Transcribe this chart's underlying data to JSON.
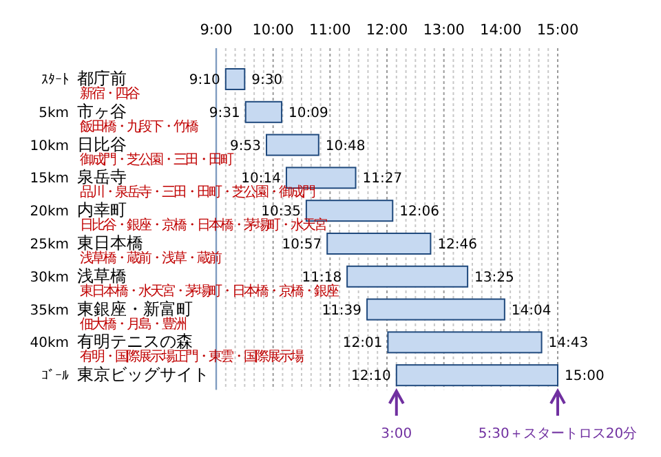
{
  "chart_data": {
    "type": "bar",
    "orientation": "horizontal",
    "color": "#c6d9f1",
    "grid": "x",
    "categories": [
      "都庁前",
      "市ヶ谷",
      "日比谷",
      "泉岳寺",
      "内幸町",
      "東日本橋",
      "浅草橋",
      "東銀座・新富町",
      "有明テニスの森",
      "東京ビッグサイト"
    ],
    "y2_categories": [
      "ｽﾀｰﾄ",
      "5km",
      "10km",
      "15km",
      "20km",
      "25km",
      "30km",
      "35km",
      "40km",
      "ｺﾞｰﾙ"
    ],
    "base": [
      9.1667,
      9.5167,
      9.8833,
      10.2333,
      10.5833,
      10.95,
      11.3,
      11.65,
      12.0167,
      12.1667
    ],
    "values": [
      0.3333,
      0.6333,
      0.9167,
      1.2167,
      1.5167,
      1.8167,
      2.1167,
      2.4167,
      2.7,
      2.8333
    ],
    "xlim": [
      9,
      15
    ],
    "xticks": [
      {
        "value": 9,
        "label": "9:00"
      },
      {
        "value": 9.1667,
        "label": null
      },
      {
        "value": 9.3333,
        "label": null
      },
      {
        "value": 9.5,
        "label": null
      },
      {
        "value": 9.6667,
        "label": null
      },
      {
        "value": 9.8333,
        "label": null
      },
      {
        "value": 10,
        "label": "10:00"
      },
      {
        "value": 10.1667,
        "label": null
      },
      {
        "value": 10.3333,
        "label": null
      },
      {
        "value": 10.5,
        "label": null
      },
      {
        "value": 10.6667,
        "label": null
      },
      {
        "value": 10.8333,
        "label": null
      },
      {
        "value": 11,
        "label": "11:00"
      },
      {
        "value": 11.1667,
        "label": null
      },
      {
        "value": 11.3333,
        "label": null
      },
      {
        "value": 11.5,
        "label": null
      },
      {
        "value": 11.6667,
        "label": null
      },
      {
        "value": 11.8333,
        "label": null
      },
      {
        "value": 12,
        "label": "12:00"
      },
      {
        "value": 12.1667,
        "label": null
      },
      {
        "value": 12.3333,
        "label": null
      },
      {
        "value": 12.5,
        "label": null
      },
      {
        "value": 12.6667,
        "label": null
      },
      {
        "value": 12.8333,
        "label": null
      },
      {
        "value": 13,
        "label": "13:00"
      },
      {
        "value": 13.1667,
        "label": null
      },
      {
        "value": 13.3333,
        "label": null
      },
      {
        "value": 13.5,
        "label": null
      },
      {
        "value": 13.6667,
        "label": null
      },
      {
        "value": 13.8333,
        "label": null
      },
      {
        "value": 14,
        "label": "14:00"
      },
      {
        "value": 14.1667,
        "label": null
      },
      {
        "value": 14.3333,
        "label": null
      },
      {
        "value": 14.5,
        "label": null
      },
      {
        "value": 14.6667,
        "label": null
      },
      {
        "value": 14.8333,
        "label": null
      },
      {
        "value": 15,
        "label": "15:00"
      }
    ],
    "annotations": [
      "新宿・四谷",
      "飯田橋・九段下・竹橋",
      "御成門・芝公園・三田・田町",
      "品川・泉岳寺・三田・田町・芝公園・御成門",
      "日比谷・銀座・京橋・日本橋・茅場町・水天宮",
      "浅草橋・蔵前・浅草・蔵前",
      "東日本橋・水天宮・茅場町・日本橋・京橋・銀座",
      "佃大橋・月島・豊洲",
      "有明・国際展示場正門・東雲・国際展示場",
      {
        "text": "9:10",
        "x": 9.1667,
        "y": "都庁前"
      },
      {
        "text": "9:30",
        "x": 9.5,
        "y": "都庁前"
      },
      {
        "text": "9:31",
        "x": 9.5167,
        "y": "市ヶ谷"
      },
      {
        "text": "10:09",
        "x": 10.15,
        "y": "市ヶ谷"
      },
      {
        "text": "9:53",
        "x": 9.8833,
        "y": "日比谷"
      },
      {
        "text": "10:48",
        "x": 10.8,
        "y": "日比谷"
      },
      {
        "text": "10:14",
        "x": 10.2333,
        "y": "泉岳寺"
      },
      {
        "text": "11:27",
        "x": 11.45,
        "y": "泉岳寺"
      },
      {
        "text": "10:35",
        "x": 10.5833,
        "y": "内幸町"
      },
      {
        "text": "12:06",
        "x": 12.1,
        "y": "内幸町"
      },
      {
        "text": "10:57",
        "x": 10.95,
        "y": "東日本橋"
      },
      {
        "text": "12:46",
        "x": 12.7667,
        "y": "東日本橋"
      },
      {
        "text": "11:18",
        "x": 11.3,
        "y": "浅草橋"
      },
      {
        "text": "13:25",
        "x": 13.4167,
        "y": "浅草橋"
      },
      {
        "text": "11:39",
        "x": 11.65,
        "y": "東銀座・新富町"
      },
      {
        "text": "14:04",
        "x": 14.0667,
        "y": "東銀座・新富町"
      },
      {
        "text": "12:01",
        "x": 12.0167,
        "y": "有明テニスの森"
      },
      {
        "text": "14:43",
        "x": 14.7167,
        "y": "有明テニスの森"
      },
      {
        "text": "12:10",
        "x": 12.1667,
        "y": "東京ビッグサイト"
      },
      {
        "text": "15:00",
        "x": 15,
        "y": "東京ビッグサイト"
      },
      {
        "text": "3:00",
        "x": 12.1667
      },
      {
        "text": "5:30＋スタートロス20分",
        "x": 15
      }
    ]
  }
}
